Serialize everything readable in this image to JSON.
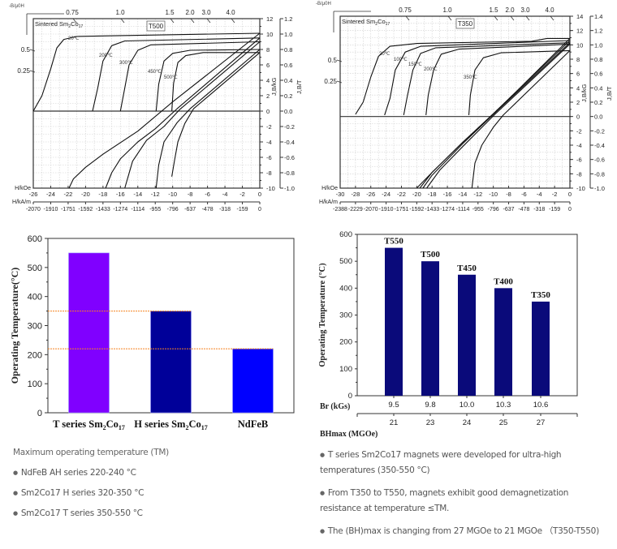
{
  "chart_data": [
    {
      "type": "line",
      "id": "demag-T500",
      "title": "T500",
      "material_label": "Sintered Sm2Co17",
      "permeance_label": "-B/μ0H",
      "permeance_ticks": [
        "0.75",
        "1.0",
        "1.5",
        "2.0",
        "3.0",
        "4.0"
      ],
      "permeance_ticks_left": [
        "0.5",
        "0.25"
      ],
      "xlabel_koe": "H/kOe",
      "xlabel_kam": "H/kA/m",
      "ylabel_kg": "J,B/kG",
      "ylabel_t": "J,B/T",
      "xlim": [
        -26,
        0
      ],
      "ylim": [
        -10,
        12
      ],
      "x_ticks_koe": [
        "-26",
        "-24",
        "-22",
        "-20",
        "-18",
        "-16",
        "-14",
        "-12",
        "-10",
        "-8",
        "-6",
        "-4",
        "-2",
        "0"
      ],
      "x_ticks_kam": [
        "-2070",
        "-1910",
        "-1751",
        "-1592",
        "-1433",
        "-1274",
        "-1114",
        "-955",
        "-796",
        "-637",
        "-478",
        "-318",
        "-159",
        "0"
      ],
      "y_ticks_kg": [
        "12",
        "10",
        "8",
        "6",
        "4",
        "2",
        "0",
        "-2",
        "-4",
        "-6",
        "-8",
        "-10"
      ],
      "y_ticks_t": [
        "1.2",
        "1.0",
        "0.8",
        "0.6",
        "0.4",
        "0.2",
        "0.0",
        "-0.2",
        "-0.4",
        "-0.6",
        "-0.8",
        "-1.0"
      ],
      "series": [
        {
          "name": "20℃",
          "J_curve": [
            [
              -26,
              0
            ],
            [
              -25,
              2
            ],
            [
              -24,
              5.5
            ],
            [
              -23.3,
              8.2
            ],
            [
              -22.5,
              9.3
            ],
            [
              -21,
              9.7
            ],
            [
              -16,
              9.8
            ],
            [
              0,
              10.1
            ]
          ],
          "B_curve": [
            [
              0,
              10.1
            ],
            [
              -10,
              1.2
            ],
            [
              -14,
              -2.6
            ],
            [
              -18,
              -5.6
            ],
            [
              -20,
              -7.3
            ],
            [
              -21.4,
              -8.8
            ],
            [
              -21.9,
              -10
            ]
          ]
        },
        {
          "name": "200℃",
          "J_curve": [
            [
              -19.2,
              0
            ],
            [
              -18.6,
              3
            ],
            [
              -18,
              6.5
            ],
            [
              -17,
              8.5
            ],
            [
              -15.5,
              9.1
            ],
            [
              0,
              9.5
            ]
          ],
          "B_curve": [
            [
              0,
              9.5
            ],
            [
              -9.5,
              0.3
            ],
            [
              -12,
              -2.3
            ],
            [
              -14,
              -4
            ],
            [
              -16,
              -6.2
            ],
            [
              -17,
              -8
            ],
            [
              -17.7,
              -10
            ]
          ]
        },
        {
          "name": "300℃",
          "J_curve": [
            [
              -16,
              0
            ],
            [
              -15.5,
              3
            ],
            [
              -15,
              6
            ],
            [
              -14,
              7.9
            ],
            [
              -12.5,
              8.6
            ],
            [
              0,
              9.0
            ]
          ],
          "B_curve": [
            [
              0,
              9.0
            ],
            [
              -9.2,
              0.2
            ],
            [
              -11,
              -2
            ],
            [
              -13,
              -3.8
            ],
            [
              -14.6,
              -6.5
            ],
            [
              -15.5,
              -10
            ]
          ]
        },
        {
          "name": "450℃",
          "J_curve": [
            [
              -11.9,
              0
            ],
            [
              -11.6,
              3.5
            ],
            [
              -11,
              6.5
            ],
            [
              -10,
              7.5
            ],
            [
              -8,
              7.9
            ],
            [
              0,
              8.0
            ]
          ],
          "B_curve": [
            [
              0,
              8.0
            ],
            [
              -8,
              0.3
            ],
            [
              -9.5,
              -1.5
            ],
            [
              -11,
              -4
            ],
            [
              -11.6,
              -7
            ],
            [
              -11.9,
              -10
            ]
          ]
        },
        {
          "name": "500℃",
          "J_curve": [
            [
              -10.1,
              0
            ],
            [
              -9.9,
              3.6
            ],
            [
              -9.4,
              6.3
            ],
            [
              -8.5,
              7.2
            ],
            [
              -6.5,
              7.6
            ],
            [
              0,
              7.6
            ]
          ],
          "B_curve": [
            [
              0,
              7.6
            ],
            [
              -7.6,
              0.3
            ],
            [
              -8.6,
              -1.6
            ],
            [
              -9.4,
              -4
            ],
            [
              -9.8,
              -6.5
            ],
            [
              -10.1,
              -8.5
            ]
          ]
        }
      ]
    },
    {
      "type": "line",
      "id": "demag-T350",
      "title": "T350",
      "material_label": "Sintered Sm2Co17",
      "permeance_label": "-B/μ0H",
      "permeance_ticks": [
        "0.75",
        "1.0",
        "1.5",
        "2.0",
        "3.0",
        "4.0"
      ],
      "permeance_ticks_left": [
        "0.5",
        "0.25"
      ],
      "xlabel_koe": "H/kOe",
      "xlabel_kam": "H/kA/m",
      "ylabel_kg": "J,B/kG",
      "ylabel_t": "J,B/T",
      "xlim": [
        -30,
        0
      ],
      "ylim": [
        -10,
        14
      ],
      "x_ticks_koe": [
        "-30",
        "-28",
        "-26",
        "-24",
        "-22",
        "-20",
        "-18",
        "-16",
        "-14",
        "-12",
        "-10",
        "-8",
        "-6",
        "-4",
        "-2",
        "0"
      ],
      "x_ticks_kam": [
        "-2388",
        "-2229",
        "-2070",
        "-1910",
        "-1751",
        "-1592",
        "-1433",
        "-1274",
        "-1114",
        "-955",
        "-796",
        "-637",
        "-478",
        "-318",
        "-159",
        "0"
      ],
      "y_ticks_kg": [
        "14",
        "12",
        "10",
        "8",
        "6",
        "4",
        "2",
        "0",
        "-2",
        "-4",
        "-6",
        "-8",
        "-10"
      ],
      "y_ticks_t": [
        "1.4",
        "1.2",
        "1.0",
        "0.8",
        "0.6",
        "0.4",
        "0.2",
        "0.0",
        "-0.2",
        "-0.4",
        "-0.6",
        "-0.8",
        "-1.0"
      ],
      "series": [
        {
          "name": "20℃",
          "J_curve": [
            [
              -28,
              0.3
            ],
            [
              -27,
              2
            ],
            [
              -26,
              5.5
            ],
            [
              -25,
              8.4
            ],
            [
              -23.5,
              9.8
            ],
            [
              -20,
              10.2
            ],
            [
              -5,
              10.5
            ],
            [
              -3,
              10.9
            ],
            [
              0,
              10.9
            ]
          ],
          "B_curve": [
            [
              0,
              10.9
            ],
            [
              -10,
              0.3
            ],
            [
              -14,
              -3.6
            ],
            [
              -18,
              -7.8
            ],
            [
              -20,
              -10
            ]
          ]
        },
        {
          "name": "100℃",
          "J_curve": [
            [
              -24.2,
              0.2
            ],
            [
              -23.5,
              2.5
            ],
            [
              -22.8,
              6.5
            ],
            [
              -21.5,
              9
            ],
            [
              -19.5,
              9.8
            ],
            [
              0,
              10.6
            ]
          ],
          "B_curve": [
            [
              0,
              10.6
            ],
            [
              -10,
              0.4
            ],
            [
              -14,
              -3.6
            ],
            [
              -18,
              -7.8
            ],
            [
              -19.6,
              -10
            ]
          ]
        },
        {
          "name": "150℃",
          "J_curve": [
            [
              -21.7,
              0.2
            ],
            [
              -21.2,
              3
            ],
            [
              -20.5,
              6.5
            ],
            [
              -19.5,
              8.8
            ],
            [
              -17.5,
              9.6
            ],
            [
              0,
              10.3
            ]
          ],
          "B_curve": [
            [
              0,
              10.3
            ],
            [
              -10,
              0.3
            ],
            [
              -14,
              -3.8
            ],
            [
              -18,
              -8.2
            ],
            [
              -19.2,
              -10
            ]
          ]
        },
        {
          "name": "200℃",
          "J_curve": [
            [
              -18.8,
              0.2
            ],
            [
              -18.5,
              3
            ],
            [
              -17.8,
              6.5
            ],
            [
              -16.8,
              8.7
            ],
            [
              -14.5,
              9.4
            ],
            [
              0,
              10.1
            ]
          ],
          "B_curve": [
            [
              0,
              10.1
            ],
            [
              -9.8,
              0.3
            ],
            [
              -14,
              -4.2
            ],
            [
              -17,
              -7.5
            ],
            [
              -18.7,
              -10
            ]
          ]
        },
        {
          "name": "350℃",
          "J_curve": [
            [
              -13.2,
              0.2
            ],
            [
              -13,
              3
            ],
            [
              -12.4,
              6.5
            ],
            [
              -11.3,
              8.2
            ],
            [
              -9,
              8.9
            ],
            [
              0,
              9.2
            ]
          ],
          "B_curve": [
            [
              0,
              9.2
            ],
            [
              -8.7,
              0.2
            ],
            [
              -10,
              -1.5
            ],
            [
              -11.5,
              -4
            ],
            [
              -12.4,
              -6.5
            ],
            [
              -12.8,
              -10
            ]
          ]
        }
      ]
    },
    {
      "type": "bar",
      "id": "max-operating-temp",
      "title": "",
      "categories": [
        "T series Sm2Co17",
        "H series Sm2Co17",
        "NdFeB"
      ],
      "category_parts": [
        {
          "base": "T series Sm",
          "sub1": "2",
          "mid": "Co",
          "sub2": "17"
        },
        {
          "base": "H series Sm",
          "sub1": "2",
          "mid": "Co",
          "sub2": "17"
        },
        {
          "base": "NdFeB",
          "sub1": "",
          "mid": "",
          "sub2": ""
        }
      ],
      "values": [
        550,
        350,
        220
      ],
      "colors": [
        "#8000ff",
        "#000099",
        "#0000ff"
      ],
      "reference_lines": [
        350,
        220
      ],
      "reference_color": "#f58220",
      "xlabel": "",
      "ylabel": "Operating Temperature(°C)",
      "ylim": [
        0,
        600
      ],
      "y_ticks": [
        "0",
        "100",
        "200",
        "300",
        "400",
        "500",
        "600"
      ]
    },
    {
      "type": "bar",
      "id": "grade-operating-temp",
      "title": "",
      "categories": [
        "T550",
        "T500",
        "T450",
        "T400",
        "T350"
      ],
      "values": [
        550,
        500,
        450,
        400,
        350
      ],
      "color": "#0a0a7a",
      "br_label": "Br (kGs)",
      "br_values": [
        "9.5",
        "9.8",
        "10.0",
        "10.3",
        "10.6"
      ],
      "bhmax_label": "BHmax (MGOe)",
      "bhmax_values": [
        "21",
        "23",
        "24",
        "25",
        "27"
      ],
      "ylabel": "Operating Temperature (°C)",
      "ylim": [
        0,
        600
      ],
      "y_ticks": [
        "0",
        "100",
        "200",
        "300",
        "400",
        "500",
        "600"
      ]
    }
  ],
  "notes_left": {
    "heading": "Maximum operating temperature (TM)",
    "items": [
      "NdFeB AH series 220-240 °C",
      "Sm2Co17 H series 320-350 °C",
      "Sm2Co17 T series 350-550 °C"
    ]
  },
  "notes_right": {
    "items": [
      "T series Sm2Co17 magnets were developed for ultra-high temperatures (350-550 °C)",
      "From T350 to T550, magnets exhibit good demagnetization resistance at temperature ≤TM.",
      "The (BH)max is changing from 27 MGOe to 21 MGOe （T350-T550)"
    ]
  }
}
